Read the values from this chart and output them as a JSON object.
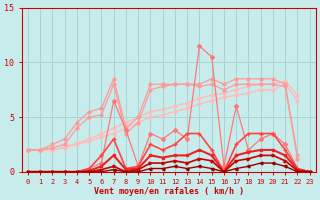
{
  "x": [
    0,
    1,
    2,
    3,
    4,
    5,
    6,
    7,
    8,
    9,
    10,
    11,
    12,
    13,
    14,
    15,
    16,
    17,
    18,
    19,
    20,
    21,
    22,
    23
  ],
  "line_light1": [
    2.0,
    2.0,
    2.0,
    2.2,
    2.5,
    2.8,
    3.2,
    3.5,
    4.0,
    4.5,
    5.0,
    5.2,
    5.5,
    5.8,
    6.2,
    6.5,
    6.8,
    7.0,
    7.2,
    7.5,
    7.5,
    8.0,
    6.5,
    null
  ],
  "line_light2": [
    2.0,
    2.0,
    2.0,
    2.3,
    2.6,
    3.0,
    3.5,
    4.0,
    4.5,
    5.0,
    5.5,
    5.7,
    6.0,
    6.3,
    6.7,
    7.0,
    7.2,
    7.5,
    7.8,
    8.0,
    8.0,
    8.3,
    7.0,
    null
  ],
  "line_med1": [
    2.0,
    2.0,
    2.5,
    3.0,
    4.5,
    5.5,
    5.8,
    8.5,
    4.0,
    5.0,
    8.0,
    8.0,
    8.0,
    8.0,
    8.0,
    8.5,
    8.0,
    8.5,
    8.5,
    8.5,
    8.5,
    8.0,
    1.5,
    null
  ],
  "line_med2": [
    2.0,
    2.0,
    2.2,
    2.5,
    4.0,
    5.0,
    5.2,
    8.0,
    3.5,
    4.5,
    7.5,
    7.8,
    8.0,
    8.0,
    7.8,
    8.0,
    7.5,
    8.0,
    8.0,
    8.0,
    8.0,
    7.8,
    1.2,
    null
  ],
  "line_pink_jagged": [
    0.0,
    0.0,
    0.0,
    0.0,
    0.0,
    0.3,
    0.8,
    6.5,
    3.8,
    0.5,
    3.5,
    3.0,
    3.8,
    3.0,
    11.5,
    10.5,
    0.5,
    6.0,
    2.0,
    3.0,
    3.5,
    2.5,
    0.3,
    0.0
  ],
  "line_dark1": [
    0.0,
    0.0,
    0.0,
    0.0,
    0.0,
    0.3,
    1.5,
    3.0,
    0.3,
    0.5,
    2.5,
    2.0,
    2.5,
    3.5,
    3.5,
    2.0,
    0.0,
    2.5,
    3.5,
    3.5,
    3.5,
    2.0,
    0.3,
    0.0
  ],
  "line_dark2": [
    0.0,
    0.0,
    0.0,
    0.0,
    0.0,
    0.1,
    0.5,
    1.5,
    0.2,
    0.3,
    1.5,
    1.3,
    1.5,
    1.5,
    2.0,
    1.5,
    0.0,
    1.5,
    1.8,
    2.0,
    2.0,
    1.5,
    0.2,
    0.0
  ],
  "line_dark3": [
    0.0,
    0.0,
    0.0,
    0.0,
    0.0,
    0.0,
    0.2,
    0.5,
    0.0,
    0.2,
    0.8,
    0.8,
    1.0,
    0.8,
    1.2,
    1.0,
    0.0,
    1.0,
    1.2,
    1.5,
    1.5,
    1.0,
    0.1,
    0.0
  ],
  "line_dark4": [
    0.0,
    0.0,
    0.0,
    0.0,
    0.0,
    0.0,
    0.0,
    0.2,
    0.0,
    0.0,
    0.3,
    0.3,
    0.5,
    0.3,
    0.5,
    0.3,
    0.0,
    0.3,
    0.5,
    0.8,
    0.8,
    0.5,
    0.0,
    0.0
  ],
  "bg_color": "#c8ecec",
  "grid_color": "#aad4d4",
  "c_light": "#ffbbbb",
  "c_med": "#ff9999",
  "c_pink": "#ff7777",
  "c_dark1": "#ff4444",
  "c_dark2": "#ee2222",
  "c_dark3": "#cc0000",
  "c_dark4": "#990000",
  "xlabel": "Vent moyen/en rafales ( km/h )",
  "ylim": [
    0,
    15
  ],
  "xlim_min": -0.5,
  "xlim_max": 23.5,
  "yticks": [
    0,
    5,
    10,
    15
  ],
  "axis_color": "#cc0000",
  "tick_color": "#cc0000"
}
